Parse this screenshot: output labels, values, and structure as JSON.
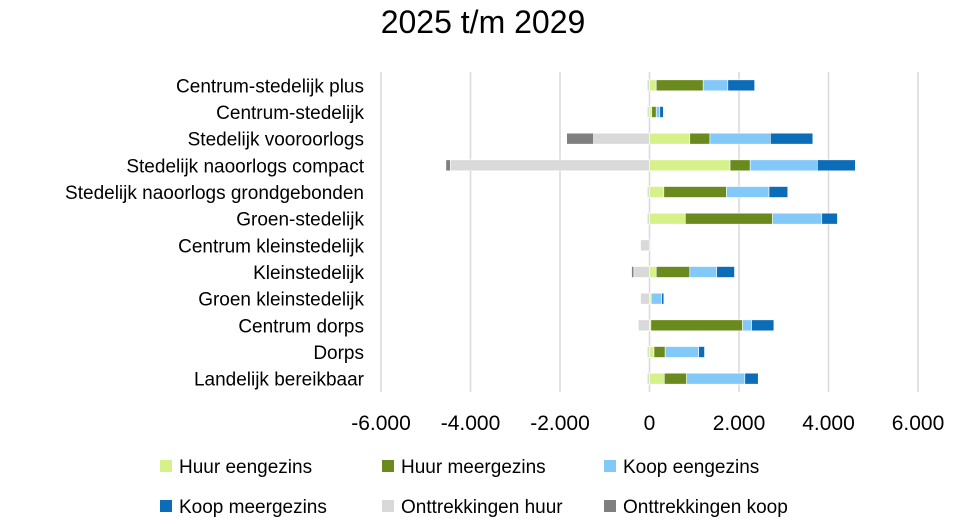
{
  "chart_data": {
    "type": "bar",
    "orientation": "horizontal",
    "stacked": true,
    "title": "2025 t/m 2029",
    "xlabel": "",
    "ylabel": "",
    "xlim": [
      -6000,
      6000
    ],
    "xticks": [
      -6000,
      -4000,
      -2000,
      0,
      2000,
      4000,
      6000
    ],
    "xtick_labels": [
      "-6.000",
      "-4.000",
      "-2.000",
      "0",
      "2.000",
      "4.000",
      "6.000"
    ],
    "grid": "vertical",
    "legend_position": "bottom",
    "categories": [
      "Centrum-stedelijk plus",
      "Centrum-stedelijk",
      "Stedelijk vooroorlogs",
      "Stedelijk naoorlogs compact",
      "Stedelijk naoorlogs grondgebonden",
      "Groen-stedelijk",
      "Centrum kleinstedelijk",
      "Kleinstedelijk",
      "Groen kleinstedelijk",
      "Centrum dorps",
      "Dorps",
      "Landelijk bereikbaar"
    ],
    "series": [
      {
        "name": "Huur eengezins",
        "color": "#d6f08a",
        "values": [
          150,
          50,
          900,
          1800,
          320,
          800,
          0,
          150,
          30,
          30,
          100,
          330
        ]
      },
      {
        "name": "Huur meergezins",
        "color": "#6a8a1e",
        "values": [
          1050,
          100,
          450,
          450,
          1400,
          1950,
          0,
          750,
          20,
          2050,
          250,
          500
        ]
      },
      {
        "name": "Koop eengezins",
        "color": "#82c8f8",
        "values": [
          550,
          80,
          1350,
          1500,
          950,
          1100,
          0,
          600,
          220,
          200,
          750,
          1300
        ]
      },
      {
        "name": "Koop meergezins",
        "color": "#0b6cb8",
        "values": [
          600,
          80,
          950,
          850,
          420,
          350,
          0,
          400,
          50,
          500,
          130,
          300
        ]
      },
      {
        "name": "Onttrekkingen huur",
        "color": "#d9d9d9",
        "values": [
          -50,
          -50,
          -1250,
          -4450,
          -50,
          -50,
          -200,
          -350,
          -200,
          -250,
          -50,
          -50
        ]
      },
      {
        "name": "Onttrekkingen koop",
        "color": "#7f7f7f",
        "values": [
          0,
          0,
          -600,
          -100,
          0,
          0,
          0,
          -50,
          0,
          0,
          0,
          0
        ]
      }
    ]
  }
}
